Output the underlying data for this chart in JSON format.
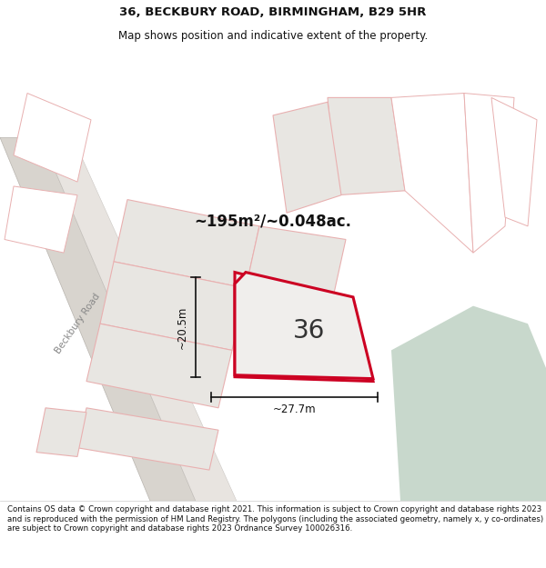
{
  "title_line1": "36, BECKBURY ROAD, BIRMINGHAM, B29 5HR",
  "title_line2": "Map shows position and indicative extent of the property.",
  "area_text": "~195m²/~0.048ac.",
  "parcel_label": "36",
  "dim_width": "~27.7m",
  "dim_height": "~20.5m",
  "road_label": "Beckbury Road",
  "footer_text": "Contains OS data © Crown copyright and database right 2021. This information is subject to Crown copyright and database rights 2023 and is reproduced with the permission of HM Land Registry. The polygons (including the associated geometry, namely x, y co-ordinates) are subject to Crown copyright and database rights 2023 Ordnance Survey 100026316.",
  "map_bg": "#ffffff",
  "parcel_fill": "#f0eeec",
  "parcel_edge": "#cc0022",
  "parcel_edge_width": 2.2,
  "road_gray": "#d8d5d0",
  "road_edge": "#b0aca8",
  "neighbour_fill": "#e8e6e2",
  "neighbour_edge": "#e8b0b0",
  "pink_edge": "#e8b0b0",
  "green_fill": "#c8d8cc",
  "title_fontsize": 9.5,
  "subtitle_fontsize": 8.5,
  "footer_fontsize": 6.2,
  "label_fontsize": 20,
  "area_fontsize": 12,
  "dim_fontsize": 8.5,
  "road_label_fontsize": 7.5
}
